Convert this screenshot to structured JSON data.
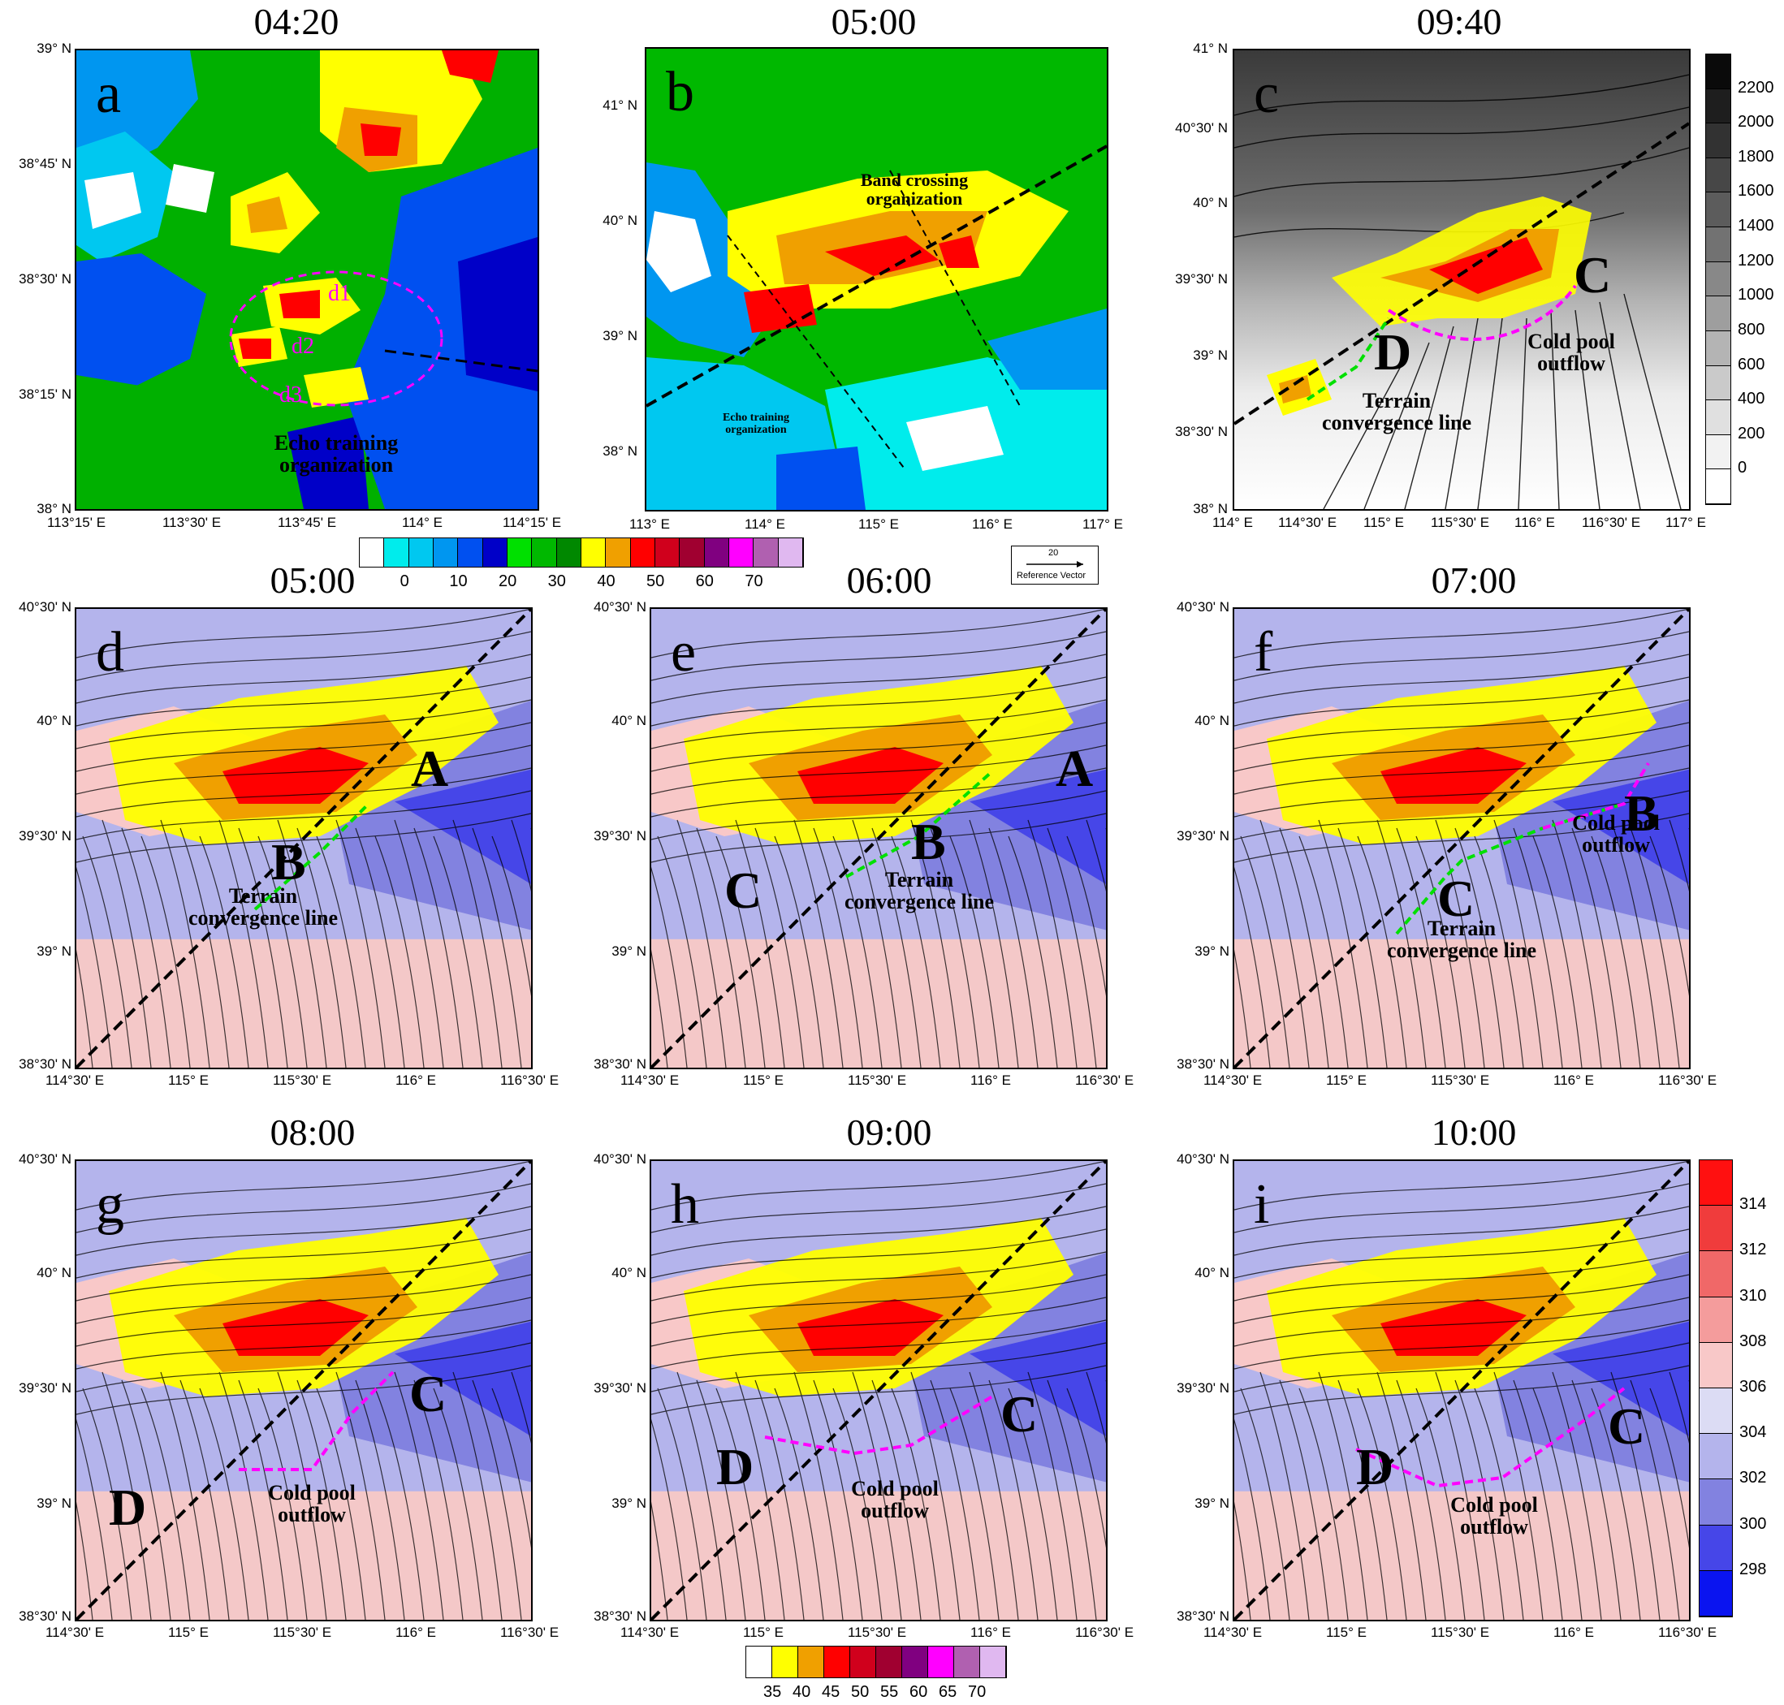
{
  "figure": {
    "times": [
      "04:20",
      "05:00",
      "09:40",
      "05:00",
      "06:00",
      "07:00",
      "08:00",
      "09:00",
      "10:00"
    ],
    "letters": [
      "a",
      "b",
      "c",
      "d",
      "e",
      "f",
      "g",
      "h",
      "i"
    ]
  },
  "panel_a": {
    "lat_ticks": [
      "39° N",
      "38°45' N",
      "38°30' N",
      "38°15' N",
      "38° N"
    ],
    "lon_ticks": [
      "113°15' E",
      "113°30' E",
      "113°45' E",
      "114° E",
      "114°15' E"
    ],
    "labels": {
      "d1": "d1",
      "d2": "d2",
      "d3": "d3"
    },
    "annotation": "Echo training organization"
  },
  "panel_b": {
    "lat_ticks": [
      "41° N",
      "40° N",
      "39° N",
      "38° N"
    ],
    "lon_ticks": [
      "113° E",
      "114° E",
      "115° E",
      "116° E",
      "117° E"
    ],
    "annotation_band": "Band crossing organization",
    "annotation_echo": "Echo training organization"
  },
  "panel_c": {
    "lat_ticks": [
      "41° N",
      "40°30' N",
      "40° N",
      "39°30' N",
      "39° N",
      "38°30' N",
      "38° N"
    ],
    "lon_ticks": [
      "114° E",
      "114°30' E",
      "115° E",
      "115°30' E",
      "116° E",
      "116°30' E",
      "117° E"
    ],
    "letter_c": "C",
    "letter_d": "D",
    "annotation_cold": "Cold pool outflow",
    "annotation_terrain": "Terrain convergence line"
  },
  "terrain_colorbar": {
    "labels": [
      "2200",
      "2000",
      "1800",
      "1600",
      "1400",
      "1200",
      "1000",
      "800",
      "600",
      "400",
      "200",
      "0"
    ],
    "colors": [
      "#0a0a0a",
      "#1e1e1e",
      "#323232",
      "#474747",
      "#5c5c5c",
      "#727272",
      "#888888",
      "#9e9e9e",
      "#b4b4b4",
      "#cacaca",
      "#e0e0e0",
      "#f2f2f2",
      "#ffffff"
    ]
  },
  "reflectivity_colorbar_top": {
    "labels": [
      "0",
      "10",
      "20",
      "30",
      "40",
      "50",
      "60",
      "70"
    ],
    "colors": [
      "#ffffff",
      "#00ecec",
      "#00c8f0",
      "#0096f0",
      "#0050f0",
      "#0000c8",
      "#00e000",
      "#00b800",
      "#008800",
      "#ffff00",
      "#f0a000",
      "#ff0000",
      "#d0001c",
      "#a00030",
      "#800080",
      "#ff00ff",
      "#b060b0",
      "#e0b8f0"
    ]
  },
  "reference_vector": {
    "value": "20",
    "label": "Reference Vector"
  },
  "panels_lower": {
    "lat_ticks": [
      "40°30' N",
      "40° N",
      "39°30' N",
      "39° N",
      "38°30' N"
    ],
    "lon_ticks": [
      "114°30' E",
      "115° E",
      "115°30' E",
      "116° E",
      "116°30' E"
    ]
  },
  "panel_d": {
    "A": "A",
    "B": "B",
    "annotation_terrain": "Terrain convergence line"
  },
  "panel_e": {
    "A": "A",
    "B": "B",
    "C": "C",
    "annotation_terrain": "Terrain convergence line"
  },
  "panel_f": {
    "B": "B",
    "C": "C",
    "annotation_terrain": "Terrain convergence line",
    "annotation_cold": "Cold pool outflow"
  },
  "panel_g": {
    "C": "C",
    "D": "D",
    "annotation_cold": "Cold pool outflow"
  },
  "panel_h": {
    "C": "C",
    "D": "D",
    "annotation_cold": "Cold pool outflow"
  },
  "panel_i": {
    "C": "C",
    "D": "D",
    "annotation_cold": "Cold pool outflow"
  },
  "theta_colorbar": {
    "labels": [
      "314",
      "312",
      "310",
      "308",
      "306",
      "304",
      "302",
      "300",
      "298"
    ],
    "colors": [
      "#ff1010",
      "#f03c3c",
      "#f06868",
      "#f49c9c",
      "#f8c8c8",
      "#dcdcf4",
      "#b4b4ec",
      "#8282e0",
      "#4646e8",
      "#0a14f0"
    ]
  },
  "reflectivity_colorbar_bottom": {
    "labels": [
      "35",
      "40",
      "45",
      "50",
      "55",
      "60",
      "65",
      "70"
    ],
    "colors": [
      "#ffffff",
      "#ffff00",
      "#f0a000",
      "#ff0000",
      "#d0001c",
      "#a00030",
      "#800080",
      "#ff00ff",
      "#b060b0",
      "#e0b8f0"
    ]
  }
}
